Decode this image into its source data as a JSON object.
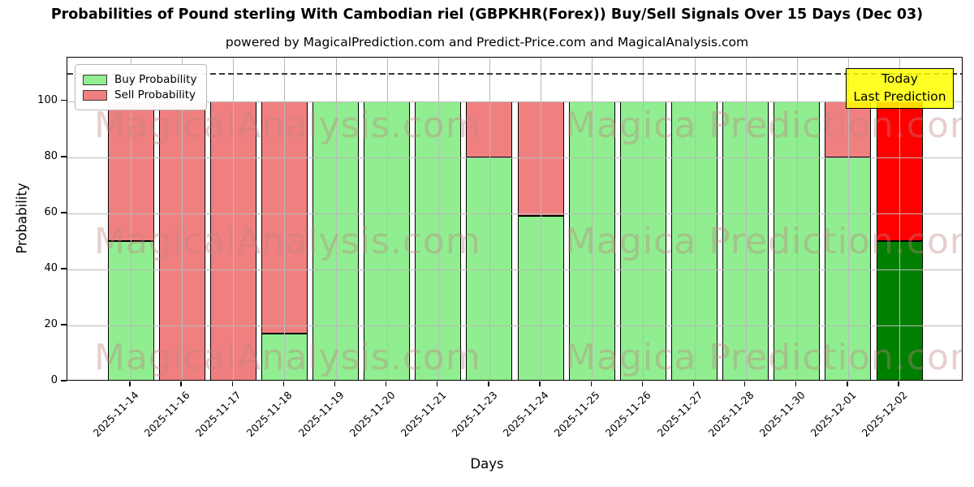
{
  "title": "Probabilities of Pound sterling With Cambodian riel (GBPKHR(Forex)) Buy/Sell Signals Over 15 Days (Dec 03)",
  "subtitle": "powered by MagicalPrediction.com and Predict-Price.com and MagicalAnalysis.com",
  "legend": {
    "buy_label": "Buy Probability",
    "sell_label": "Sell Probability"
  },
  "annotation": {
    "line1": "Today",
    "line2": "Last Prediction",
    "background": "#ffff00"
  },
  "watermark": {
    "left_text": "MagicalAnalysis.com",
    "right_text": "Magica Prediction.com"
  },
  "colors": {
    "buy": "#90EE90",
    "sell": "#F08080",
    "buy_today": "#008000",
    "sell_today": "#FF0000",
    "bar_edge": "#000000",
    "grid": "#b9b9b9",
    "dashed_line": "#3a3a3a"
  },
  "chart_data": {
    "type": "bar",
    "stacked": true,
    "title": "Probabilities of Pound sterling With Cambodian riel (GBPKHR(Forex)) Buy/Sell Signals Over 15 Days (Dec 03)",
    "xlabel": "Days",
    "ylabel": "Probability",
    "yticks": [
      0,
      20,
      40,
      60,
      80,
      100
    ],
    "ylim": [
      0,
      115.6
    ],
    "dashed_line_y": 110,
    "grid": true,
    "legend_position": "upper left",
    "categories": [
      "2025-11-14",
      "2025-11-16",
      "2025-11-17",
      "2025-11-18",
      "2025-11-19",
      "2025-11-20",
      "2025-11-21",
      "2025-11-23",
      "2025-11-24",
      "2025-11-25",
      "2025-11-26",
      "2025-11-27",
      "2025-11-28",
      "2025-11-30",
      "2025-12-01",
      "2025-12-02"
    ],
    "series": [
      {
        "name": "Buy Probability",
        "values": [
          50,
          0,
          0,
          17,
          100,
          100,
          100,
          80,
          59,
          100,
          100,
          100,
          100,
          100,
          80,
          50
        ]
      },
      {
        "name": "Sell Probability",
        "values": [
          50,
          100,
          100,
          83,
          0,
          0,
          0,
          20,
          41,
          0,
          0,
          0,
          0,
          0,
          20,
          50
        ]
      }
    ],
    "today_index": 15,
    "today_note": "Last bar (2025-12-02) uses dark green / bright red colors"
  }
}
